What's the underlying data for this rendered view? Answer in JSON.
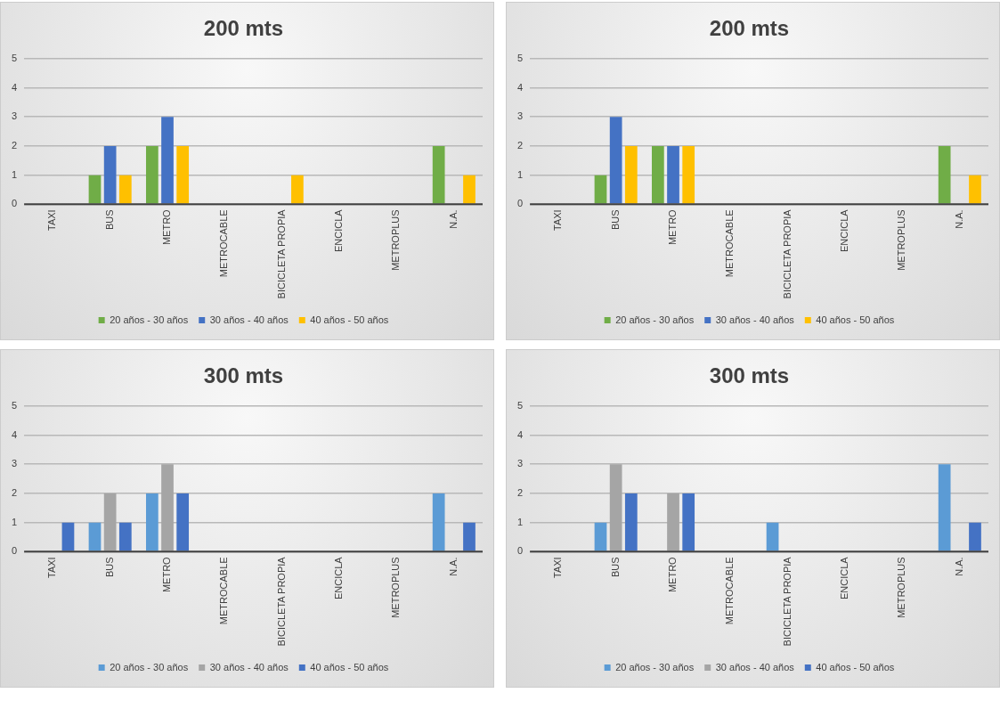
{
  "chart_data": [
    {
      "type": "bar",
      "title": "200 mts",
      "categories": [
        "TAXI",
        "BUS",
        "METRO",
        "METROCABLE",
        "BICICLETA PROPIA",
        "ENCICLA",
        "METROPLUS",
        "N.A."
      ],
      "series": [
        {
          "name": "20 años - 30 años",
          "color": "#70ad47",
          "values": [
            0,
            1,
            2,
            0,
            0,
            0,
            0,
            2
          ]
        },
        {
          "name": "30 años - 40 años",
          "color": "#4472c4",
          "values": [
            0,
            2,
            3,
            0,
            0,
            0,
            0,
            0
          ]
        },
        {
          "name": "40 años - 50 años",
          "color": "#ffc000",
          "values": [
            0,
            1,
            2,
            0,
            1,
            0,
            0,
            1
          ]
        }
      ],
      "ylim": [
        0,
        5
      ],
      "yticks": [
        0,
        1,
        2,
        3,
        4,
        5
      ],
      "grid": "y",
      "legend": "bottom"
    },
    {
      "type": "bar",
      "title": "200 mts",
      "categories": [
        "TAXI",
        "BUS",
        "METRO",
        "METROCABLE",
        "BICICLETA PROPIA",
        "ENCICLA",
        "METROPLUS",
        "N.A."
      ],
      "series": [
        {
          "name": "20 años - 30 años",
          "color": "#70ad47",
          "values": [
            0,
            1,
            2,
            0,
            0,
            0,
            0,
            2
          ]
        },
        {
          "name": "30 años - 40 años",
          "color": "#4472c4",
          "values": [
            0,
            3,
            2,
            0,
            0,
            0,
            0,
            0
          ]
        },
        {
          "name": "40 años - 50 años",
          "color": "#ffc000",
          "values": [
            0,
            2,
            2,
            0,
            0,
            0,
            0,
            1
          ]
        }
      ],
      "ylim": [
        0,
        5
      ],
      "yticks": [
        0,
        1,
        2,
        3,
        4,
        5
      ],
      "grid": "y",
      "legend": "bottom"
    },
    {
      "type": "bar",
      "title": "300 mts",
      "categories": [
        "TAXI",
        "BUS",
        "METRO",
        "METROCABLE",
        "BICICLETA PROPIA",
        "ENCICLA",
        "METROPLUS",
        "N.A."
      ],
      "series": [
        {
          "name": "20 años - 30 años",
          "color": "#5b9bd5",
          "values": [
            0,
            1,
            2,
            0,
            0,
            0,
            0,
            2
          ]
        },
        {
          "name": "30 años - 40 años",
          "color": "#a5a5a5",
          "values": [
            0,
            2,
            3,
            0,
            0,
            0,
            0,
            0
          ]
        },
        {
          "name": "40 años - 50 años",
          "color": "#4472c4",
          "values": [
            1,
            1,
            2,
            0,
            0,
            0,
            0,
            1
          ]
        }
      ],
      "ylim": [
        0,
        5
      ],
      "yticks": [
        0,
        1,
        2,
        3,
        4,
        5
      ],
      "grid": "y",
      "legend": "bottom"
    },
    {
      "type": "bar",
      "title": "300 mts",
      "categories": [
        "TAXI",
        "BUS",
        "METRO",
        "METROCABLE",
        "BICICLETA PROPIA",
        "ENCICLA",
        "METROPLUS",
        "N.A."
      ],
      "series": [
        {
          "name": "20 años - 30 años",
          "color": "#5b9bd5",
          "values": [
            0,
            1,
            0,
            0,
            1,
            0,
            0,
            3
          ]
        },
        {
          "name": "30 años - 40 años",
          "color": "#a5a5a5",
          "values": [
            0,
            3,
            2,
            0,
            0,
            0,
            0,
            0
          ]
        },
        {
          "name": "40 años - 50 años",
          "color": "#4472c4",
          "values": [
            0,
            2,
            2,
            0,
            0,
            0,
            0,
            1
          ]
        }
      ],
      "ylim": [
        0,
        5
      ],
      "yticks": [
        0,
        1,
        2,
        3,
        4,
        5
      ],
      "grid": "y",
      "legend": "bottom"
    }
  ]
}
